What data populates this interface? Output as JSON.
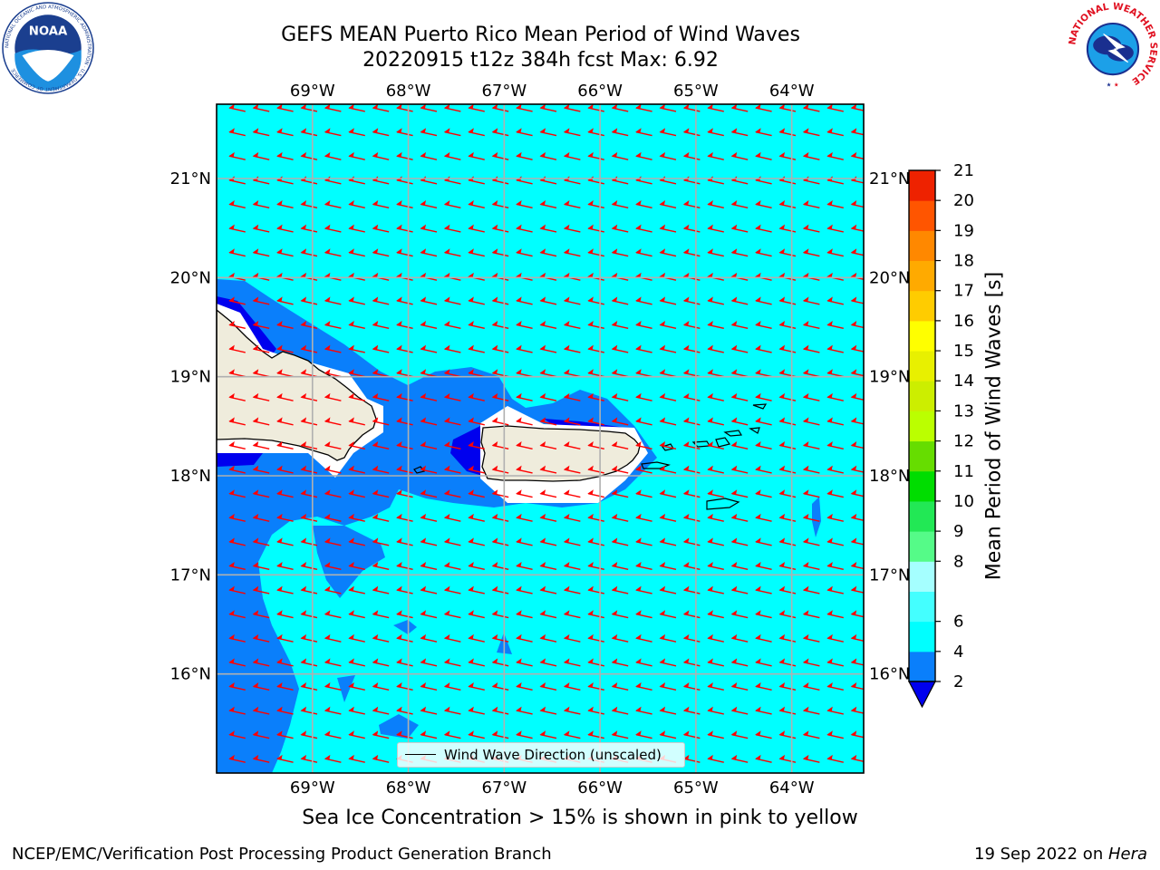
{
  "title": {
    "line1": "GEFS MEAN Puerto Rico Mean Period of Wind Waves",
    "line2": "20220915 t12z 384h fcst   Max: 6.92"
  },
  "logos": {
    "left": {
      "name": "noaa-logo",
      "text": "NOAA",
      "ring_text": "NATIONAL OCEANIC AND ATMOSPHERIC ADMINISTRATION · U.S. DEPARTMENT OF COMMERCE"
    },
    "right": {
      "name": "nws-logo",
      "ring_text": "NATIONAL WEATHER SERVICE"
    }
  },
  "map": {
    "lon_ticks": [
      "69°W",
      "68°W",
      "67°W",
      "66°W",
      "65°W",
      "64°W"
    ],
    "lat_ticks": [
      "21°N",
      "20°N",
      "19°N",
      "18°N",
      "17°N",
      "16°N"
    ],
    "lon_values": [
      -69,
      -68,
      -67,
      -66,
      -65,
      -64
    ],
    "lat_values": [
      21,
      20,
      19,
      18,
      17,
      16
    ],
    "extent": {
      "lon_min": -70.0,
      "lon_max": -63.25,
      "lat_min": 15.0,
      "lat_max": 21.75
    },
    "field": "Mean Period of Wind Waves",
    "max_value": 6.92,
    "grid": true,
    "colors": {
      "land": "#efecdc",
      "period_2_4": "#0a7ffb",
      "period_4_6": "#00ffff",
      "period_below_2": "#0000ee",
      "arrows": "#ff0000"
    },
    "wind_wave_direction": "toward west-southwest"
  },
  "legend": {
    "label": "Wind Wave Direction (unscaled)",
    "position": "bottom-center"
  },
  "colorbar": {
    "label": "Mean Period of Wind Waves [s]",
    "ticks": [
      "2",
      "4",
      "6",
      "8",
      "9",
      "10",
      "11",
      "12",
      "13",
      "14",
      "15",
      "16",
      "17",
      "18",
      "19",
      "20",
      "21"
    ],
    "levels": [
      2,
      4,
      6,
      7,
      8,
      9,
      10,
      11,
      12,
      13,
      14,
      15,
      16,
      17,
      18,
      19,
      20,
      21
    ],
    "colors": [
      "#0a7ffb",
      "#00ffff",
      "#44ffff",
      "#a5ffff",
      "#55fb88",
      "#22e855",
      "#00dd00",
      "#66dd00",
      "#bbff00",
      "#ccee00",
      "#e8f000",
      "#ffff00",
      "#ffcc00",
      "#ffaa00",
      "#ff8800",
      "#ff5500",
      "#ee2200",
      "#ff0000"
    ],
    "under_color": "#0000ee"
  },
  "footer": {
    "note": "Sea Ice Concentration > 15% is shown in pink to yellow",
    "credit_left": "NCEP/EMC/Verification Post Processing Product Generation Branch",
    "credit_date": "19 Sep 2022 on ",
    "credit_machine": "Hera"
  }
}
